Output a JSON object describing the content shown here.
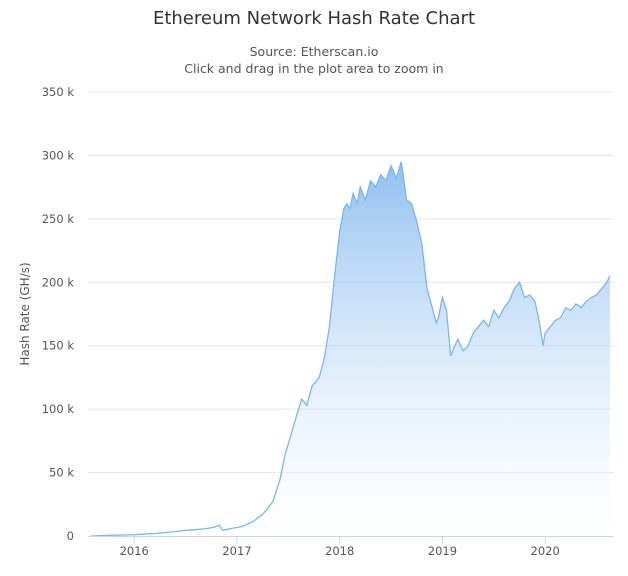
{
  "chart_data": {
    "type": "area",
    "title": "Ethereum Network Hash Rate Chart",
    "subtitle": [
      "Source: Etherscan.io",
      "Click and drag in the plot area to zoom in"
    ],
    "ylabel": "Hash Rate (GH/s)",
    "xlabel": "",
    "ylim": [
      0,
      350000
    ],
    "yticks": [
      {
        "value": 0,
        "label": "0"
      },
      {
        "value": 50000,
        "label": "50 k"
      },
      {
        "value": 100000,
        "label": "100 k"
      },
      {
        "value": 150000,
        "label": "150 k"
      },
      {
        "value": 200000,
        "label": "200 k"
      },
      {
        "value": 250000,
        "label": "250 k"
      },
      {
        "value": 300000,
        "label": "300 k"
      },
      {
        "value": 350000,
        "label": "350 k"
      }
    ],
    "xlim": [
      2015.55,
      2020.67
    ],
    "xticks": [
      {
        "value": 2016,
        "label": "2016"
      },
      {
        "value": 2017,
        "label": "2017"
      },
      {
        "value": 2018,
        "label": "2018"
      },
      {
        "value": 2019,
        "label": "2019"
      },
      {
        "value": 2020,
        "label": "2020"
      }
    ],
    "grid": true,
    "legend": "none",
    "colors": {
      "line": "#7cb5ec",
      "fill_top": "#7cb5ec",
      "fill_bottom": "#ffffff",
      "grid": "#e6e6e6",
      "axis": "#ccd6eb"
    },
    "x": [
      2015.58,
      2015.8,
      2016.0,
      2016.2,
      2016.4,
      2016.5,
      2016.6,
      2016.7,
      2016.78,
      2016.83,
      2016.86,
      2016.95,
      2017.05,
      2017.15,
      2017.25,
      2017.35,
      2017.42,
      2017.47,
      2017.52,
      2017.58,
      2017.63,
      2017.68,
      2017.73,
      2017.8,
      2017.85,
      2017.9,
      2017.95,
      2018.0,
      2018.04,
      2018.07,
      2018.1,
      2018.13,
      2018.17,
      2018.2,
      2018.25,
      2018.3,
      2018.35,
      2018.4,
      2018.45,
      2018.5,
      2018.55,
      2018.6,
      2018.65,
      2018.7,
      2018.75,
      2018.8,
      2018.85,
      2018.9,
      2018.94,
      2018.96,
      2019.0,
      2019.04,
      2019.08,
      2019.12,
      2019.15,
      2019.2,
      2019.25,
      2019.3,
      2019.35,
      2019.4,
      2019.45,
      2019.5,
      2019.55,
      2019.6,
      2019.65,
      2019.7,
      2019.75,
      2019.8,
      2019.85,
      2019.9,
      2019.94,
      2019.98,
      2020.0,
      2020.05,
      2020.1,
      2020.15,
      2020.2,
      2020.25,
      2020.3,
      2020.35,
      2020.4,
      2020.45,
      2020.5,
      2020.55,
      2020.6,
      2020.63
    ],
    "values": [
      0,
      600,
      1000,
      2000,
      3500,
      4500,
      5000,
      5800,
      7000,
      8500,
      4500,
      6000,
      7500,
      11000,
      17000,
      27000,
      45000,
      65000,
      78000,
      95000,
      108000,
      103000,
      118000,
      125000,
      140000,
      165000,
      205000,
      240000,
      258000,
      262000,
      258000,
      270000,
      262000,
      275000,
      265000,
      280000,
      275000,
      285000,
      280000,
      292000,
      282000,
      295000,
      265000,
      262000,
      248000,
      230000,
      195000,
      180000,
      168000,
      172000,
      188000,
      178000,
      142000,
      150000,
      155000,
      146000,
      150000,
      160000,
      165000,
      170000,
      165000,
      178000,
      172000,
      180000,
      185000,
      195000,
      200000,
      188000,
      190000,
      185000,
      170000,
      150000,
      160000,
      165000,
      170000,
      172000,
      180000,
      178000,
      183000,
      180000,
      185000,
      188000,
      190000,
      195000,
      200000,
      205000
    ]
  }
}
